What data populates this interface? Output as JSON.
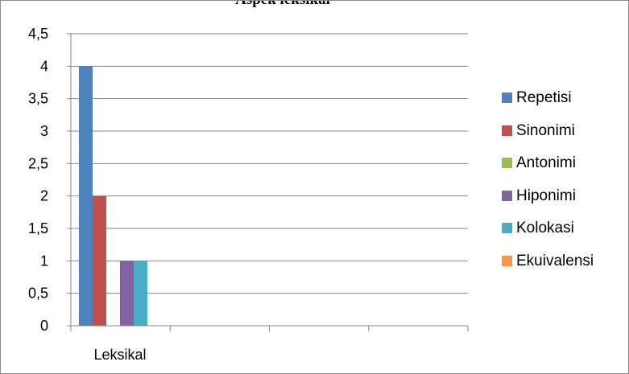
{
  "chart_data": {
    "type": "bar",
    "title": "Aspek leksikal",
    "categories": [
      "Leksikal"
    ],
    "series": [
      {
        "name": "Repetisi",
        "values": [
          4
        ],
        "color": "#4f81bd"
      },
      {
        "name": "Sinonimi",
        "values": [
          2
        ],
        "color": "#c0504d"
      },
      {
        "name": "Antonimi",
        "values": [
          0
        ],
        "color": "#9bbb59"
      },
      {
        "name": "Hiponimi",
        "values": [
          1
        ],
        "color": "#8064a2"
      },
      {
        "name": "Kolokasi",
        "values": [
          1
        ],
        "color": "#4bacc6"
      },
      {
        "name": "Ekuivalensi",
        "values": [
          0
        ],
        "color": "#f79646"
      }
    ],
    "ylim": [
      0,
      4.5
    ],
    "yticks": [
      "0",
      "0,5",
      "1",
      "1,5",
      "2",
      "2,5",
      "3",
      "3,5",
      "4",
      "4,5"
    ],
    "grid": true,
    "legend": "right"
  }
}
